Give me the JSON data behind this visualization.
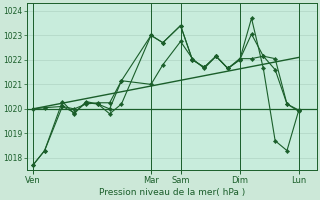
{
  "bg_color": "#cce8d8",
  "plot_bg_color": "#c8ecdc",
  "grid_color": "#aacfbe",
  "line_color": "#1a5e2a",
  "xlabel": "Pression niveau de la mer( hPa )",
  "ylim": [
    1017.5,
    1024.3
  ],
  "yticks": [
    1018,
    1019,
    1020,
    1021,
    1022,
    1023,
    1024
  ],
  "x_tick_labels": [
    "Ven",
    "Mar",
    "Sam",
    "Dim",
    "Lun"
  ],
  "x_tick_pos": [
    0,
    40,
    50,
    70,
    90
  ],
  "xlim": [
    -2,
    96
  ],
  "hline_y": 1020.0,
  "series1_x": [
    0,
    4,
    10,
    14,
    18,
    22,
    26,
    30,
    40,
    44,
    50,
    54,
    58,
    62,
    66,
    70,
    74,
    78,
    82,
    86,
    90
  ],
  "series1_y": [
    1017.7,
    1018.3,
    1020.3,
    1019.8,
    1020.3,
    1020.2,
    1019.8,
    1020.2,
    1023.0,
    1022.7,
    1023.4,
    1022.0,
    1021.7,
    1022.15,
    1021.65,
    1022.0,
    1023.05,
    1022.15,
    1021.6,
    1020.2,
    1019.9
  ],
  "series2_x": [
    0,
    4,
    10,
    14,
    18,
    22,
    26,
    30,
    40,
    44,
    50,
    54,
    58,
    62,
    66,
    70,
    74,
    78,
    82,
    86,
    90
  ],
  "series2_y": [
    1020.0,
    1020.05,
    1020.1,
    1020.0,
    1020.2,
    1020.25,
    1020.25,
    1021.15,
    1021.0,
    1021.8,
    1022.75,
    1022.05,
    1021.65,
    1022.15,
    1021.65,
    1022.05,
    1022.05,
    1022.15,
    1022.05,
    1020.2,
    1019.95
  ],
  "trend_x": [
    0,
    90
  ],
  "trend_y": [
    1020.0,
    1022.1
  ],
  "series3_x": [
    0,
    4,
    10,
    14,
    18,
    22,
    26,
    30,
    40,
    44,
    50,
    54,
    58,
    62,
    66,
    70,
    74,
    78,
    82,
    86,
    90
  ],
  "series3_y": [
    1017.7,
    1018.3,
    1020.1,
    1019.85,
    1020.25,
    1020.2,
    1020.0,
    1021.15,
    1023.0,
    1022.7,
    1023.4,
    1022.0,
    1021.7,
    1022.15,
    1021.65,
    1022.0,
    1023.7,
    1021.65,
    1018.7,
    1018.3,
    1019.95
  ],
  "vlines": [
    0,
    40,
    50,
    70,
    90
  ]
}
